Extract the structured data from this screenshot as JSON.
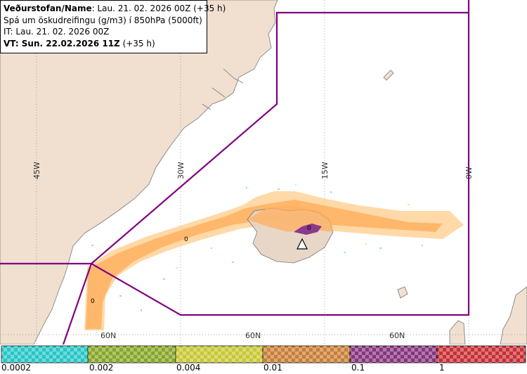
{
  "header": {
    "line1_bold": "Veðurstofan/Name",
    "line1_rest": ": Lau. 21. 02. 2026 00Z (+35 h)",
    "line2": "Spá um öskudreifingu (g/m3) í 850hPa (5000ft)",
    "line3": "IT: Lau. 21. 02. 2026 00Z",
    "line4_bold": "VT: Sun. 22.02.2026 11Z",
    "line4_rest": " (+35 h)"
  },
  "grid_labels": {
    "lon": [
      "45W",
      "30W",
      "15W",
      "0W"
    ],
    "lat": [
      "60N",
      "60N",
      "60N"
    ]
  },
  "contour_labels": [
    "0",
    "0",
    "0"
  ],
  "legend": {
    "labels": [
      "0.0002",
      "0.002",
      "0.004",
      "0.01",
      "0.1",
      "1"
    ],
    "colors": [
      "#26c6c6",
      "#86a626",
      "#c8c834",
      "#c87e34",
      "#86347e",
      "#c82e34"
    ]
  },
  "colors": {
    "land": "#f1dfd0",
    "boundary": "#800080",
    "ash_light": "#ffcc8a",
    "ash_mid": "#ffb060",
    "ash_dark": "#8a3a8a"
  }
}
